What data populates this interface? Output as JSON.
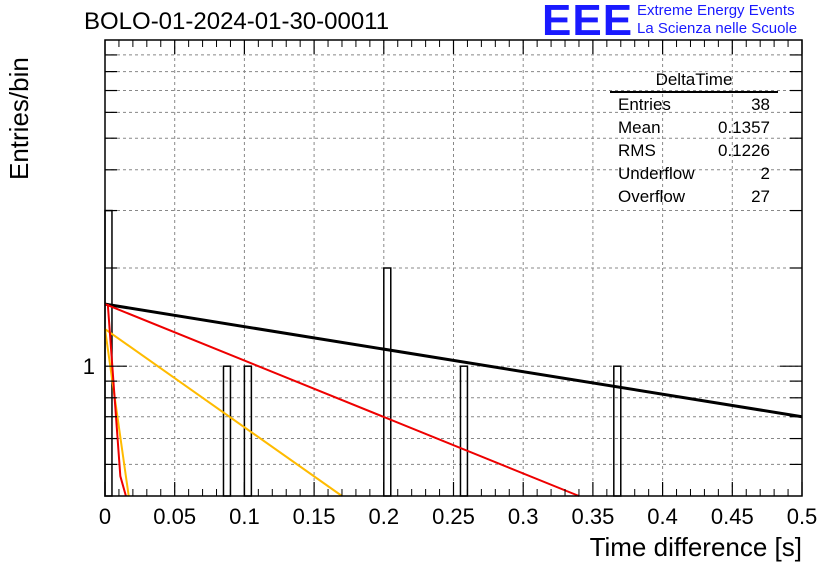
{
  "header": {
    "run_title": "BOLO-01-2024-01-30-00011",
    "logo_mark": "EEE",
    "logo_line1": "Extreme Energy Events",
    "logo_line2": "La Scienza nelle Scuole",
    "logo_color": "#1a1aff"
  },
  "stats": {
    "title": "DeltaTime",
    "rows": [
      {
        "label": "Entries",
        "value": "38"
      },
      {
        "label": "Mean",
        "value": "0.1357"
      },
      {
        "label": "RMS",
        "value": "0.1226"
      },
      {
        "label": "Underflow",
        "value": "2"
      },
      {
        "label": "Overflow",
        "value": "27"
      }
    ]
  },
  "chart_data": {
    "type": "bar",
    "xlabel": "Time difference [s]",
    "ylabel": "Entries/bin",
    "xlim": [
      0,
      0.5
    ],
    "ylim": [
      0.4,
      10
    ],
    "yscale": "log",
    "grid": true,
    "xticks": [
      "0",
      "0.05",
      "0.1",
      "0.15",
      "0.2",
      "0.25",
      "0.3",
      "0.35",
      "0.4",
      "0.45",
      "0.5"
    ],
    "yticks": [
      "1"
    ],
    "bin_width": 0.005,
    "bins": [
      {
        "x": 0.0,
        "value": 3
      },
      {
        "x": 0.085,
        "value": 1
      },
      {
        "x": 0.1,
        "value": 1
      },
      {
        "x": 0.2,
        "value": 2
      },
      {
        "x": 0.255,
        "value": 1
      },
      {
        "x": 0.365,
        "value": 1
      }
    ],
    "lines": [
      {
        "color": "#000000",
        "x": [
          0,
          0.5
        ],
        "y": [
          1.55,
          0.7
        ]
      },
      {
        "color": "#ee0000",
        "x": [
          0,
          0.34
        ],
        "y": [
          1.55,
          0.4
        ]
      },
      {
        "color": "#ffbb00",
        "x": [
          0,
          0.17
        ],
        "y": [
          1.3,
          0.4
        ]
      },
      {
        "color": "#ffbb00",
        "x": [
          0,
          0.017
        ],
        "y": [
          1.3,
          0.4
        ]
      },
      {
        "color": "#ee0000",
        "x": [
          0.002,
          0.011,
          0.015
        ],
        "y": [
          1.55,
          0.46,
          0.4
        ]
      }
    ]
  }
}
